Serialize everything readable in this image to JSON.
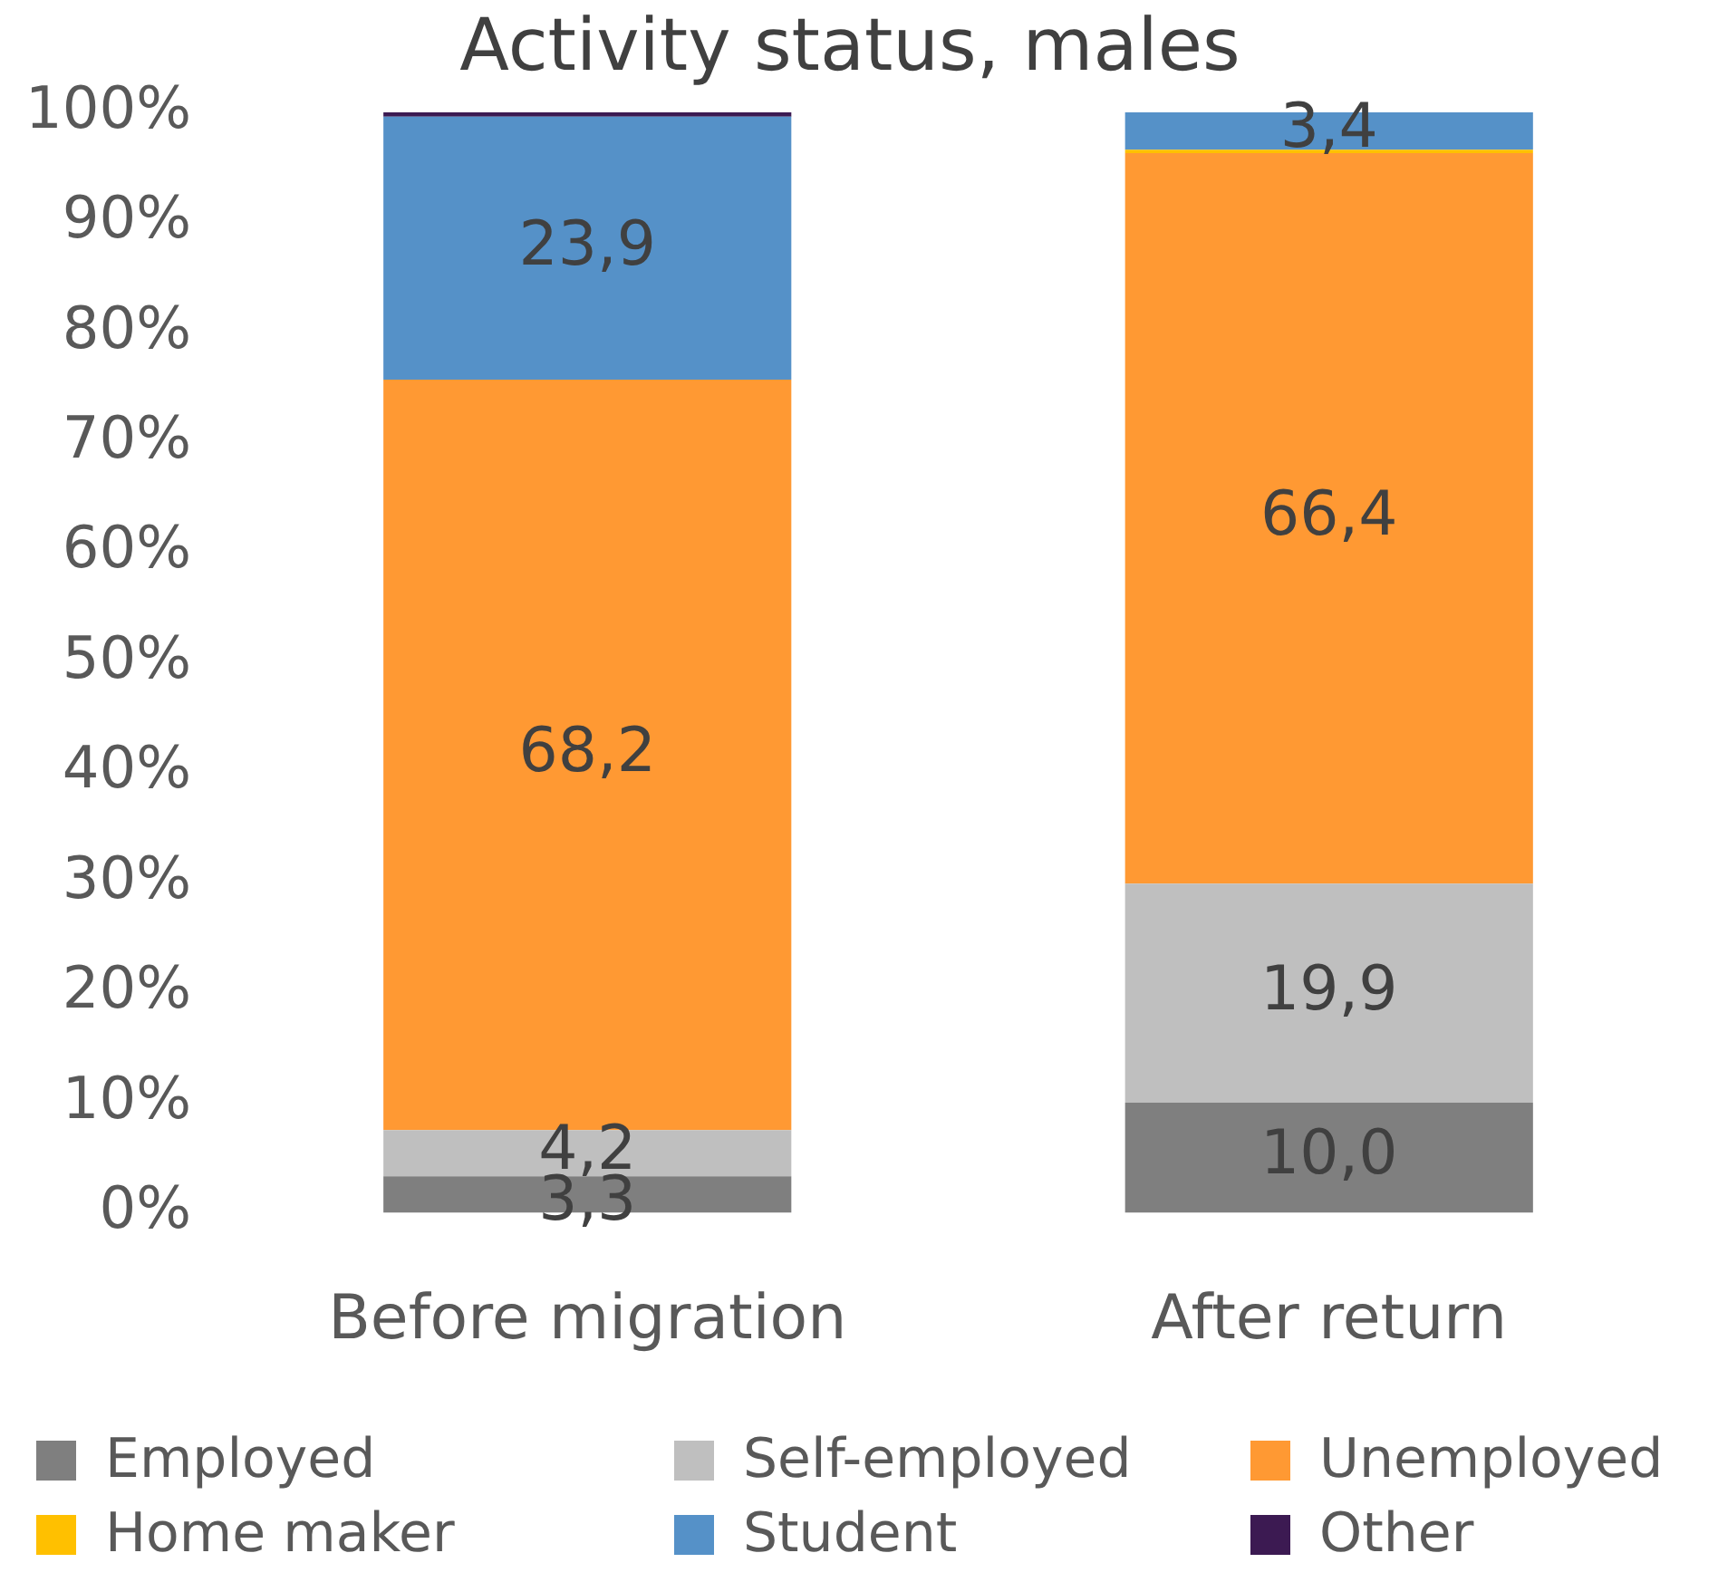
{
  "chart_data": {
    "type": "bar",
    "title": "Activity status, males",
    "stacked": true,
    "categories": [
      "Before migration",
      "After return"
    ],
    "series": [
      {
        "name": "Employed",
        "color": "#7f7f7f",
        "values": [
          3.3,
          10.0
        ],
        "value_labels": [
          "3,3",
          "10,0"
        ]
      },
      {
        "name": "Self-employed",
        "color": "#bfbfbf",
        "values": [
          4.2,
          19.9
        ],
        "value_labels": [
          "4,2",
          "19,9"
        ]
      },
      {
        "name": "Unemployed",
        "color": "#ff9933",
        "values": [
          68.2,
          66.4
        ],
        "value_labels": [
          "68,2",
          "66,4"
        ]
      },
      {
        "name": "Home maker",
        "color": "#ffc000",
        "values": [
          0,
          0.3
        ],
        "value_labels": [
          null,
          null
        ]
      },
      {
        "name": "Student",
        "color": "#5591c8",
        "values": [
          23.9,
          3.4
        ],
        "value_labels": [
          "23,9",
          "3,4"
        ]
      },
      {
        "name": "Other",
        "color": "#3c1a52",
        "values": [
          0.4,
          0
        ],
        "value_labels": [
          null,
          null
        ]
      }
    ],
    "ylim": [
      0,
      100
    ],
    "yticks": [
      {
        "value": 0,
        "label": "0%"
      },
      {
        "value": 10,
        "label": "10%"
      },
      {
        "value": 20,
        "label": "20%"
      },
      {
        "value": 30,
        "label": "30%"
      },
      {
        "value": 40,
        "label": "40%"
      },
      {
        "value": 50,
        "label": "50%"
      },
      {
        "value": 60,
        "label": "60%"
      },
      {
        "value": 70,
        "label": "70%"
      },
      {
        "value": 80,
        "label": "80%"
      },
      {
        "value": 90,
        "label": "90%"
      },
      {
        "value": 100,
        "label": "100%"
      }
    ],
    "grid": false,
    "legend": "bottom"
  }
}
